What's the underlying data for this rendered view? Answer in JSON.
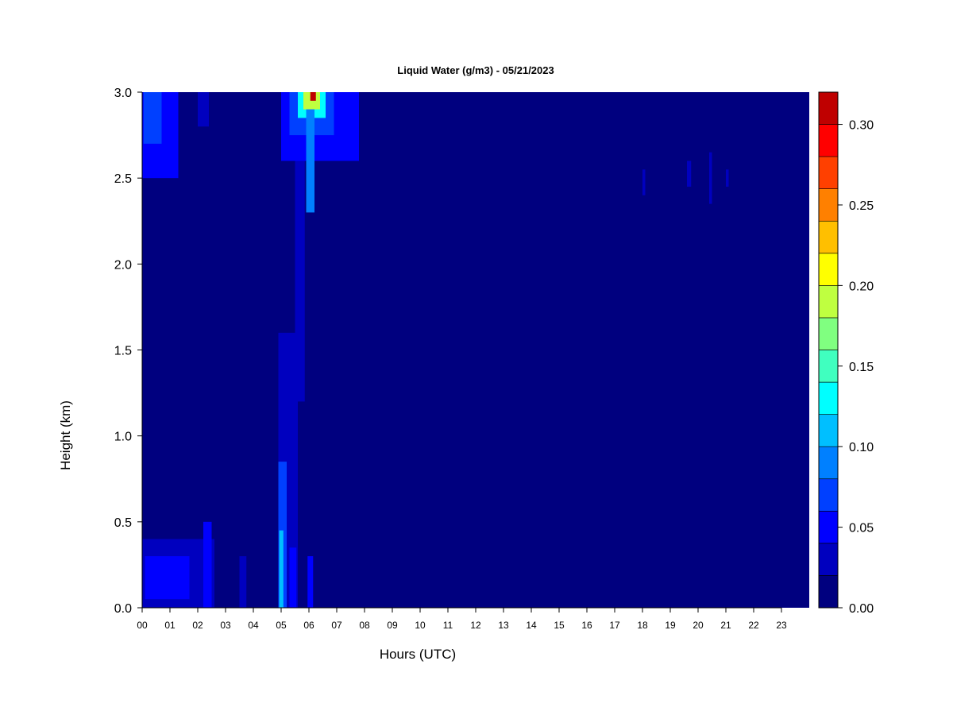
{
  "chart_data": {
    "type": "heatmap",
    "title": "Liquid Water (g/m3) - 05/21/2023",
    "xlabel": "Hours (UTC)",
    "ylabel": "Height (km)",
    "xlim": [
      0,
      24
    ],
    "ylim": [
      0.0,
      3.0
    ],
    "x_tick_labels": [
      "00",
      "01",
      "02",
      "03",
      "04",
      "05",
      "06",
      "07",
      "08",
      "09",
      "10",
      "11",
      "12",
      "13",
      "14",
      "15",
      "16",
      "17",
      "18",
      "19",
      "20",
      "21",
      "22",
      "23"
    ],
    "y_tick_labels": [
      "0.0",
      "0.5",
      "1.0",
      "1.5",
      "2.0",
      "2.5",
      "3.0"
    ],
    "y_ticks": [
      0.0,
      0.5,
      1.0,
      1.5,
      2.0,
      2.5,
      3.0
    ],
    "colorbar": {
      "levels": [
        0.0,
        0.02,
        0.04,
        0.06,
        0.08,
        0.1,
        0.12,
        0.14,
        0.16,
        0.18,
        0.2,
        0.22,
        0.24,
        0.26,
        0.28,
        0.3,
        0.32
      ],
      "colors": [
        "#00007f",
        "#0000bf",
        "#0000ff",
        "#0040ff",
        "#0080ff",
        "#00bfff",
        "#00ffff",
        "#40ffbf",
        "#80ff80",
        "#bfff40",
        "#ffff00",
        "#ffbf00",
        "#ff8000",
        "#ff4000",
        "#ff0000",
        "#bf0000",
        "#7f0000"
      ],
      "tick_labels": [
        "0.00",
        "0.05",
        "0.10",
        "0.15",
        "0.20",
        "0.25",
        "0.30"
      ],
      "tick_values": [
        0.0,
        0.05,
        0.1,
        0.15,
        0.2,
        0.25,
        0.3
      ]
    },
    "features": [
      {
        "hour_start": 0.0,
        "hour_end": 1.3,
        "h_min": 2.5,
        "h_max": 3.0,
        "value": 0.04
      },
      {
        "hour_start": 0.05,
        "hour_end": 0.7,
        "h_min": 2.7,
        "h_max": 3.0,
        "value": 0.06
      },
      {
        "hour_start": 2.0,
        "hour_end": 2.4,
        "h_min": 2.8,
        "h_max": 3.0,
        "value": 0.03
      },
      {
        "hour_start": 5.0,
        "hour_end": 7.8,
        "h_min": 2.6,
        "h_max": 3.0,
        "value": 0.04
      },
      {
        "hour_start": 5.3,
        "hour_end": 6.9,
        "h_min": 2.75,
        "h_max": 3.0,
        "value": 0.07
      },
      {
        "hour_start": 5.6,
        "hour_end": 6.6,
        "h_min": 2.85,
        "h_max": 3.0,
        "value": 0.12
      },
      {
        "hour_start": 5.8,
        "hour_end": 6.4,
        "h_min": 2.9,
        "h_max": 3.0,
        "value": 0.19
      },
      {
        "hour_start": 6.05,
        "hour_end": 6.25,
        "h_min": 2.95,
        "h_max": 3.0,
        "value": 0.3
      },
      {
        "hour_start": 5.9,
        "hour_end": 6.2,
        "h_min": 2.3,
        "h_max": 2.9,
        "value": 0.08
      },
      {
        "hour_start": 5.5,
        "hour_end": 5.85,
        "h_min": 1.2,
        "h_max": 2.6,
        "value": 0.03
      },
      {
        "hour_start": 4.9,
        "hour_end": 5.6,
        "h_min": 0.0,
        "h_max": 1.6,
        "value": 0.03
      },
      {
        "hour_start": 4.9,
        "hour_end": 5.2,
        "h_min": 0.0,
        "h_max": 0.85,
        "value": 0.06
      },
      {
        "hour_start": 4.93,
        "hour_end": 5.08,
        "h_min": 0.0,
        "h_max": 0.45,
        "value": 0.1
      },
      {
        "hour_start": 5.3,
        "hour_end": 5.55,
        "h_min": 0.0,
        "h_max": 0.35,
        "value": 0.05
      },
      {
        "hour_start": 0.0,
        "hour_end": 2.6,
        "h_min": 0.0,
        "h_max": 0.4,
        "value": 0.03
      },
      {
        "hour_start": 0.1,
        "hour_end": 1.7,
        "h_min": 0.05,
        "h_max": 0.3,
        "value": 0.05
      },
      {
        "hour_start": 2.2,
        "hour_end": 2.5,
        "h_min": 0.0,
        "h_max": 0.5,
        "value": 0.04
      },
      {
        "hour_start": 3.5,
        "hour_end": 3.75,
        "h_min": 0.0,
        "h_max": 0.3,
        "value": 0.03
      },
      {
        "hour_start": 5.95,
        "hour_end": 6.15,
        "h_min": 0.0,
        "h_max": 0.3,
        "value": 0.04
      },
      {
        "hour_start": 18.0,
        "hour_end": 18.1,
        "h_min": 2.4,
        "h_max": 2.55,
        "value": 0.025
      },
      {
        "hour_start": 19.6,
        "hour_end": 19.75,
        "h_min": 2.45,
        "h_max": 2.6,
        "value": 0.025
      },
      {
        "hour_start": 20.4,
        "hour_end": 20.5,
        "h_min": 2.35,
        "h_max": 2.65,
        "value": 0.025
      },
      {
        "hour_start": 21.0,
        "hour_end": 21.1,
        "h_min": 2.45,
        "h_max": 2.55,
        "value": 0.025
      }
    ]
  }
}
